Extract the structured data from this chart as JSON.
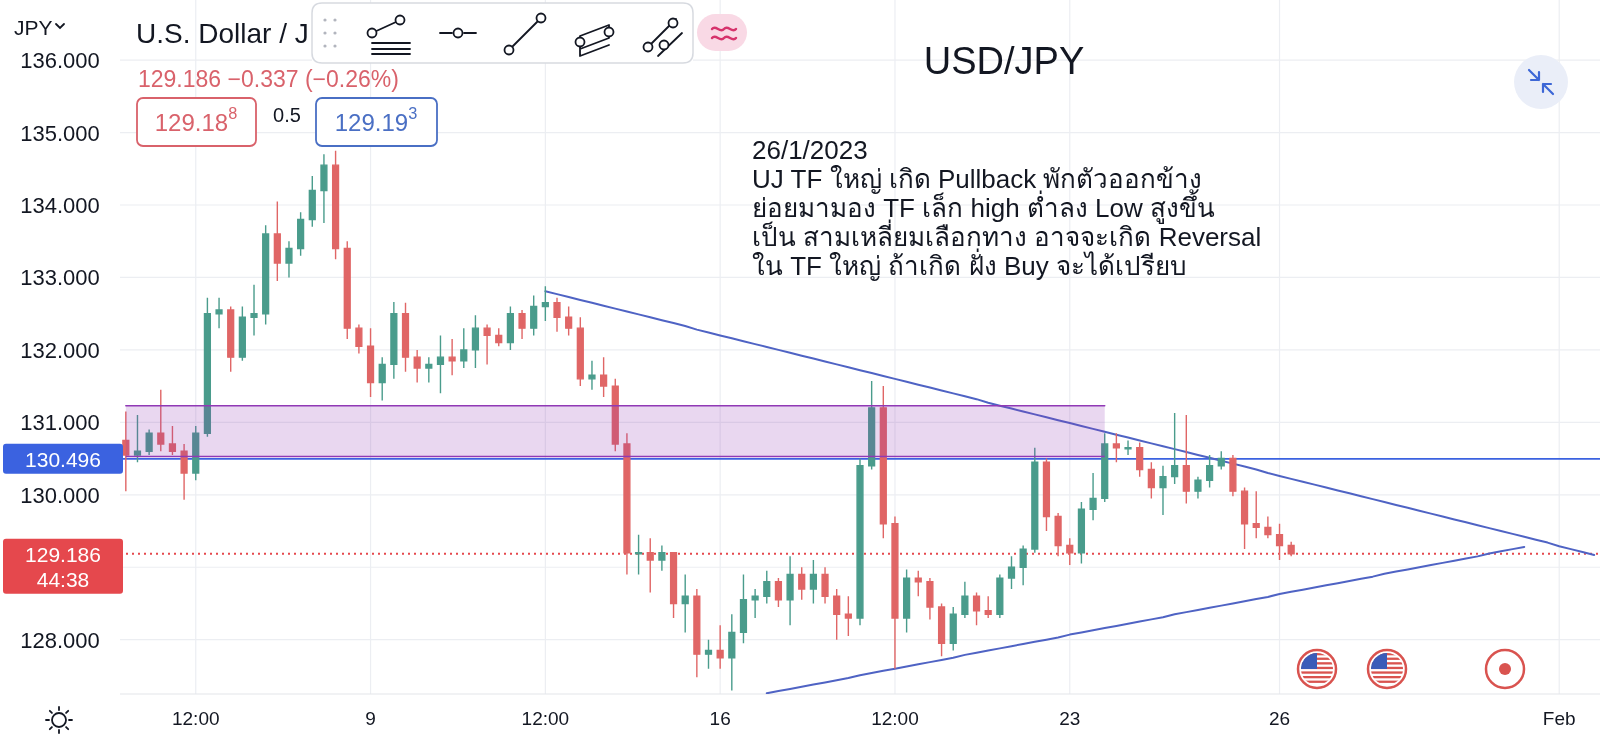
{
  "chart_data": {
    "type": "candlestick",
    "title": "USD/JPY",
    "subtitle": "U.S. Dollar / J",
    "categories": [
      null,
      null,
      null,
      null,
      null,
      null,
      "12:00",
      null,
      null,
      null,
      null,
      null,
      null,
      null,
      null,
      null,
      null,
      null,
      null,
      null,
      null,
      "9",
      null,
      null,
      null,
      null,
      null,
      null,
      null,
      null,
      null,
      null,
      null,
      null,
      null,
      null,
      "12:00",
      null,
      null,
      null,
      null,
      null,
      null,
      null,
      null,
      null,
      null,
      null,
      null,
      null,
      null,
      "16",
      null,
      null,
      null,
      null,
      null,
      null,
      null,
      null,
      null,
      null,
      null,
      null,
      null,
      null,
      "12:00",
      null,
      null,
      null,
      null,
      null,
      null,
      null,
      null,
      null,
      null,
      null,
      null,
      null,
      null,
      "23",
      null,
      null,
      null,
      null,
      null,
      null,
      null,
      null,
      null,
      null,
      null,
      null,
      null,
      null,
      null,
      null,
      null,
      "26",
      null,
      null,
      null,
      null,
      null,
      null,
      null,
      null,
      null,
      null,
      null,
      null,
      null,
      null,
      null,
      null,
      null,
      null,
      null,
      null,
      null,
      null,
      null,
      "Feb",
      null,
      null,
      null
    ],
    "ohlc": [
      [
        130.75,
        131.15,
        130.05,
        130.55
      ],
      [
        130.55,
        131.1,
        130.45,
        130.6
      ],
      [
        130.6,
        130.9,
        130.55,
        130.85
      ],
      [
        130.85,
        131.45,
        130.6,
        130.7
      ],
      [
        130.7,
        130.95,
        130.55,
        130.6
      ],
      [
        130.6,
        130.7,
        129.93,
        130.3
      ],
      [
        130.3,
        130.95,
        130.2,
        130.85
      ],
      [
        130.85,
        132.72,
        130.8,
        132.5
      ],
      [
        132.5,
        132.72,
        132.3,
        132.55
      ],
      [
        132.55,
        132.6,
        131.7,
        131.9
      ],
      [
        131.9,
        132.6,
        131.85,
        132.45
      ],
      [
        132.45,
        132.9,
        132.2,
        132.5
      ],
      [
        132.5,
        133.72,
        132.35,
        133.6
      ],
      [
        133.6,
        134.05,
        132.95,
        133.2
      ],
      [
        133.2,
        133.5,
        133.0,
        133.4
      ],
      [
        133.4,
        133.9,
        133.3,
        133.8
      ],
      [
        133.8,
        134.4,
        133.7,
        134.2
      ],
      [
        134.2,
        134.7,
        133.75,
        134.55
      ],
      [
        134.55,
        134.75,
        133.25,
        133.4
      ],
      [
        133.4,
        133.5,
        132.15,
        132.3
      ],
      [
        132.3,
        132.35,
        131.95,
        132.05
      ],
      [
        132.05,
        132.3,
        131.35,
        131.55
      ],
      [
        131.55,
        131.9,
        131.3,
        131.8
      ],
      [
        131.8,
        132.66,
        131.6,
        132.5
      ],
      [
        132.5,
        132.65,
        131.7,
        131.9
      ],
      [
        131.9,
        132.0,
        131.55,
        131.75
      ],
      [
        131.75,
        131.9,
        131.55,
        131.8
      ],
      [
        131.8,
        132.2,
        131.4,
        131.9
      ],
      [
        131.9,
        132.15,
        131.65,
        131.85
      ],
      [
        131.85,
        132.3,
        131.75,
        132.0
      ],
      [
        132.0,
        132.48,
        131.75,
        132.3
      ],
      [
        132.3,
        132.35,
        131.8,
        132.2
      ],
      [
        132.2,
        132.3,
        132.05,
        132.1
      ],
      [
        132.1,
        132.6,
        132.0,
        132.5
      ],
      [
        132.5,
        132.55,
        132.15,
        132.3
      ],
      [
        132.3,
        132.75,
        132.2,
        132.6
      ],
      [
        132.6,
        132.88,
        132.4,
        132.65
      ],
      [
        132.65,
        132.72,
        132.25,
        132.45
      ],
      [
        132.45,
        132.6,
        132.2,
        132.3
      ],
      [
        132.3,
        132.45,
        131.5,
        131.6
      ],
      [
        131.6,
        131.85,
        131.45,
        131.65
      ],
      [
        131.65,
        131.9,
        131.35,
        131.5
      ],
      [
        131.5,
        131.6,
        130.6,
        130.7
      ],
      [
        130.7,
        130.85,
        128.9,
        129.2
      ],
      [
        129.2,
        129.45,
        128.9,
        129.2
      ],
      [
        129.2,
        129.4,
        128.65,
        129.1
      ],
      [
        129.1,
        129.3,
        128.95,
        129.2
      ],
      [
        129.2,
        129.2,
        128.3,
        128.5
      ],
      [
        128.5,
        128.9,
        128.1,
        128.6
      ],
      [
        128.6,
        128.7,
        127.48,
        127.8
      ],
      [
        127.8,
        128.0,
        127.6,
        127.85
      ],
      [
        127.85,
        128.2,
        127.6,
        127.75
      ],
      [
        127.75,
        128.35,
        127.3,
        128.1
      ],
      [
        128.1,
        128.9,
        127.95,
        128.55
      ],
      [
        128.55,
        128.7,
        128.3,
        128.6
      ],
      [
        128.6,
        128.95,
        128.5,
        128.8
      ],
      [
        128.8,
        128.85,
        128.45,
        128.55
      ],
      [
        128.55,
        129.15,
        128.2,
        128.9
      ],
      [
        128.9,
        129.0,
        128.55,
        128.7
      ],
      [
        128.7,
        129.1,
        128.5,
        128.9
      ],
      [
        128.9,
        129.0,
        128.5,
        128.6
      ],
      [
        128.6,
        128.7,
        128.0,
        128.35
      ],
      [
        128.35,
        128.6,
        128.05,
        128.3
      ],
      [
        128.3,
        130.5,
        128.2,
        130.4
      ],
      [
        130.4,
        131.57,
        130.35,
        131.2
      ],
      [
        131.2,
        131.5,
        129.4,
        129.6
      ],
      [
        129.6,
        129.7,
        127.6,
        128.3
      ],
      [
        128.3,
        128.97,
        128.1,
        128.85
      ],
      [
        128.85,
        128.95,
        128.6,
        128.8
      ],
      [
        128.8,
        128.85,
        128.28,
        128.45
      ],
      [
        128.45,
        128.5,
        127.77,
        127.95
      ],
      [
        127.95,
        128.45,
        127.85,
        128.35
      ],
      [
        128.35,
        128.8,
        128.3,
        128.6
      ],
      [
        128.6,
        128.65,
        128.2,
        128.4
      ],
      [
        128.4,
        128.6,
        128.3,
        128.35
      ],
      [
        128.35,
        128.9,
        128.3,
        128.85
      ],
      [
        128.85,
        129.15,
        128.7,
        129.0
      ],
      [
        129.0,
        129.3,
        128.75,
        129.25
      ],
      [
        129.25,
        130.65,
        129.2,
        130.45
      ],
      [
        130.45,
        130.5,
        129.5,
        129.7
      ],
      [
        129.7,
        129.75,
        129.15,
        129.3
      ],
      [
        129.3,
        129.4,
        129.03,
        129.2
      ],
      [
        129.2,
        129.9,
        129.05,
        129.8
      ],
      [
        129.8,
        130.3,
        129.65,
        129.95
      ],
      [
        129.95,
        130.85,
        129.9,
        130.7
      ],
      [
        130.7,
        130.85,
        130.45,
        130.65
      ],
      [
        130.65,
        130.75,
        130.55,
        130.65
      ],
      [
        130.65,
        130.72,
        130.25,
        130.35
      ],
      [
        130.35,
        130.45,
        129.95,
        130.1
      ],
      [
        130.1,
        130.4,
        129.72,
        130.25
      ],
      [
        130.25,
        131.13,
        130.15,
        130.4
      ],
      [
        130.4,
        131.1,
        129.88,
        130.05
      ],
      [
        130.05,
        130.25,
        129.95,
        130.2
      ],
      [
        130.2,
        130.55,
        130.1,
        130.4
      ],
      [
        130.4,
        130.6,
        130.35,
        130.5
      ],
      [
        130.5,
        130.55,
        129.98,
        130.05
      ],
      [
        130.05,
        130.1,
        129.25,
        129.6
      ],
      [
        129.6,
        130.05,
        129.4,
        129.55
      ],
      [
        129.55,
        129.7,
        129.4,
        129.45
      ],
      [
        129.45,
        129.6,
        129.1,
        129.3
      ],
      [
        129.3,
        129.35,
        129.15,
        129.186
      ],
      null,
      null,
      null,
      null,
      null,
      null,
      null,
      null,
      null,
      null,
      null,
      null,
      null,
      null,
      null,
      null,
      null,
      null,
      null,
      null,
      null,
      null,
      null,
      null,
      null,
      null
    ],
    "colors": [
      "#e06666",
      "#4a9c8c",
      "#4a9c8c",
      "#e06666",
      "#e06666",
      "#e06666",
      "#4a9c8c",
      "#4a9c8c",
      "#4a9c8c",
      "#e06666",
      "#4a9c8c",
      "#4a9c8c",
      "#4a9c8c",
      "#e06666",
      "#4a9c8c",
      "#4a9c8c",
      "#4a9c8c",
      "#4a9c8c",
      "#e06666",
      "#e06666",
      "#e06666",
      "#e06666",
      "#4a9c8c",
      "#4a9c8c",
      "#e06666",
      "#e06666",
      "#4a9c8c",
      "#4a9c8c",
      "#e06666",
      "#4a9c8c",
      "#4a9c8c",
      "#e06666",
      "#e06666",
      "#4a9c8c",
      "#e06666",
      "#4a9c8c",
      "#4a9c8c",
      "#e06666",
      "#e06666",
      "#e06666",
      "#4a9c8c",
      "#e06666",
      "#e06666",
      "#e06666",
      "#4a9c8c",
      "#e06666",
      "#4a9c8c",
      "#e06666",
      "#4a9c8c",
      "#e06666",
      "#4a9c8c",
      "#e06666",
      "#4a9c8c",
      "#4a9c8c",
      "#4a9c8c",
      "#4a9c8c",
      "#e06666",
      "#4a9c8c",
      "#e06666",
      "#4a9c8c",
      "#e06666",
      "#e06666",
      "#e06666",
      "#4a9c8c",
      "#4a9c8c",
      "#e06666",
      "#e06666",
      "#4a9c8c",
      "#e06666",
      "#e06666",
      "#e06666",
      "#4a9c8c",
      "#4a9c8c",
      "#e06666",
      "#e06666",
      "#4a9c8c",
      "#4a9c8c",
      "#4a9c8c",
      "#4a9c8c",
      "#e06666",
      "#e06666",
      "#e06666",
      "#4a9c8c",
      "#4a9c8c",
      "#4a9c8c",
      "#e06666",
      "#4a9c8c",
      "#e06666",
      "#e06666",
      "#4a9c8c",
      "#4a9c8c",
      "#e06666",
      "#4a9c8c",
      "#4a9c8c",
      "#4a9c8c",
      "#e06666",
      "#e06666",
      "#e06666",
      "#e06666",
      "#e06666",
      "#e06666",
      null,
      null,
      null,
      null,
      null,
      null,
      null,
      null,
      null,
      null,
      null,
      null,
      null,
      null,
      null,
      null,
      null,
      null,
      null,
      null,
      null,
      null,
      null,
      null,
      null,
      null
    ],
    "ylim": [
      127.25,
      136.83
    ],
    "yticks": [
      {
        "value": 128,
        "label": "128.000"
      },
      {
        "value": 129,
        "label": null
      },
      {
        "value": 130,
        "label": "130.000"
      },
      {
        "value": 131,
        "label": "131.000"
      },
      {
        "value": 132,
        "label": "132.000"
      },
      {
        "value": 133,
        "label": "133.000"
      },
      {
        "value": 134,
        "label": "134.000"
      },
      {
        "value": 135,
        "label": "135.000"
      },
      {
        "value": 136,
        "label": "136.000"
      }
    ],
    "grid": true,
    "series": [
      {
        "type": "line",
        "color": "#9039b5",
        "values": [
          131.23,
          131.23,
          131.23,
          131.23,
          131.23,
          131.23,
          131.23,
          131.23,
          131.23,
          131.23,
          131.23,
          131.23,
          131.23,
          131.23,
          131.23,
          131.23,
          131.23,
          131.23,
          131.23,
          131.23,
          131.23,
          131.23,
          131.23,
          131.23,
          131.23,
          131.23,
          131.23,
          131.23,
          131.23,
          131.23,
          131.23,
          131.23,
          131.23,
          131.23,
          131.23,
          131.23,
          131.23,
          131.23,
          131.23,
          131.23,
          131.23,
          131.23,
          131.23,
          131.23,
          131.23,
          131.23,
          131.23,
          131.23,
          131.23,
          131.23,
          131.23,
          131.23,
          131.23,
          131.23,
          131.23,
          131.23,
          131.23,
          131.23,
          131.23,
          131.23,
          131.23,
          131.23,
          131.23,
          131.23,
          131.23,
          131.23,
          131.23,
          131.23,
          131.23,
          131.23,
          131.23,
          131.23,
          131.23,
          131.23,
          131.23,
          131.23,
          131.23,
          131.23,
          131.23,
          131.23,
          131.23,
          131.23,
          131.23,
          131.23,
          131.23,
          null,
          null,
          null,
          null,
          null,
          null,
          null,
          null,
          null,
          null,
          null,
          null,
          null,
          null,
          null,
          null,
          null,
          null,
          null,
          null,
          null,
          null,
          null,
          null,
          null,
          null,
          null,
          null,
          null,
          null,
          null,
          null,
          null,
          null,
          null,
          null,
          null,
          null,
          null,
          null,
          null,
          null
        ],
        "upper": [
          131.23,
          131.23,
          131.23,
          131.23,
          131.23,
          131.23,
          131.23,
          131.23,
          131.23,
          131.23,
          131.23,
          131.23,
          131.23,
          131.23,
          131.23,
          131.23,
          131.23,
          131.23,
          131.23,
          131.23,
          131.23,
          131.23,
          131.23,
          131.23,
          131.23,
          131.23,
          131.23,
          131.23,
          131.23,
          131.23,
          131.23,
          131.23,
          131.23,
          131.23,
          131.23,
          131.23,
          131.23,
          131.23,
          131.23,
          131.23,
          131.23,
          131.23,
          131.23,
          131.23,
          131.23,
          131.23,
          131.23,
          131.23,
          131.23,
          131.23,
          131.23,
          131.23,
          131.23,
          131.23,
          131.23,
          131.23,
          131.23,
          131.23,
          131.23,
          131.23,
          131.23,
          131.23,
          131.23,
          131.23,
          131.23,
          131.23,
          131.23,
          131.23,
          131.23,
          131.23,
          131.23,
          131.23,
          131.23,
          131.23,
          131.23,
          131.23,
          131.23,
          131.23,
          131.23,
          131.23,
          131.23,
          131.23,
          131.23,
          131.23,
          131.23,
          null,
          null,
          null,
          null,
          null,
          null,
          null,
          null,
          null,
          null,
          null,
          null,
          null,
          null,
          null,
          null,
          null,
          null,
          null,
          null,
          null,
          null,
          null,
          null,
          null,
          null,
          null,
          null,
          null,
          null,
          null,
          null,
          null,
          null,
          null,
          null,
          null,
          null,
          null,
          null,
          null,
          null
        ],
        "lower": [
          130.53,
          130.53,
          130.53,
          130.53,
          130.53,
          130.53,
          130.53,
          130.53,
          130.53,
          130.53,
          130.53,
          130.53,
          130.53,
          130.53,
          130.53,
          130.53,
          130.53,
          130.53,
          130.53,
          130.53,
          130.53,
          130.53,
          130.53,
          130.53,
          130.53,
          130.53,
          130.53,
          130.53,
          130.53,
          130.53,
          130.53,
          130.53,
          130.53,
          130.53,
          130.53,
          130.53,
          130.53,
          130.53,
          130.53,
          130.53,
          130.53,
          130.53,
          130.53,
          130.53,
          130.53,
          130.53,
          130.53,
          130.53,
          130.53,
          130.53,
          130.53,
          130.53,
          130.53,
          130.53,
          130.53,
          130.53,
          130.53,
          130.53,
          130.53,
          130.53,
          130.53,
          130.53,
          130.53,
          130.53,
          130.53,
          130.53,
          130.53,
          130.53,
          130.53,
          130.53,
          130.53,
          130.53,
          130.53,
          130.53,
          130.53,
          130.53,
          130.53,
          130.53,
          130.53,
          130.53,
          130.53,
          130.53,
          130.53,
          130.53,
          130.53,
          null,
          null,
          null,
          null,
          null,
          null,
          null,
          null,
          null,
          null,
          null,
          null,
          null,
          null,
          null,
          null,
          null,
          null,
          null,
          null,
          null,
          null,
          null,
          null,
          null,
          null,
          null,
          null,
          null,
          null,
          null,
          null,
          null,
          null,
          null,
          null,
          null,
          null,
          null,
          null,
          null,
          null
        ]
      },
      {
        "type": "line",
        "color": "#4f63c4",
        "values": [
          null,
          null,
          null,
          null,
          null,
          null,
          null,
          null,
          null,
          null,
          null,
          null,
          null,
          null,
          null,
          null,
          null,
          null,
          null,
          null,
          null,
          null,
          null,
          null,
          null,
          null,
          null,
          null,
          null,
          null,
          null,
          null,
          null,
          null,
          null,
          null,
          132.81,
          132.77,
          132.73,
          132.69,
          132.65,
          132.61,
          132.57,
          132.53,
          132.49,
          132.45,
          132.41,
          132.37,
          132.33,
          132.28,
          132.24,
          132.2,
          132.16,
          132.12,
          132.08,
          132.04,
          132.0,
          131.96,
          131.92,
          131.88,
          131.84,
          131.8,
          131.76,
          131.72,
          131.68,
          131.64,
          131.6,
          131.56,
          131.52,
          131.48,
          131.44,
          131.4,
          131.36,
          131.32,
          131.27,
          131.23,
          131.19,
          131.15,
          131.11,
          131.07,
          131.03,
          130.99,
          130.95,
          130.91,
          130.87,
          130.83,
          130.79,
          130.75,
          130.71,
          130.67,
          130.63,
          130.59,
          130.55,
          130.51,
          130.47,
          130.43,
          130.39,
          130.35,
          130.3,
          130.26,
          130.22,
          130.18,
          130.14,
          130.1,
          130.06,
          130.02,
          129.98,
          129.94,
          129.9,
          129.86,
          129.82,
          129.78,
          129.74,
          129.7,
          129.66,
          129.62,
          129.58,
          129.54,
          129.5,
          129.46,
          129.42,
          129.38,
          129.34,
          129.29,
          129.25,
          129.21,
          129.17
        ]
      },
      {
        "type": "line",
        "color": "#4f63c4",
        "values": [
          null,
          null,
          null,
          null,
          null,
          null,
          null,
          null,
          null,
          null,
          null,
          null,
          null,
          null,
          null,
          null,
          null,
          null,
          null,
          null,
          null,
          null,
          null,
          null,
          null,
          null,
          null,
          null,
          null,
          null,
          null,
          null,
          null,
          null,
          null,
          null,
          null,
          null,
          null,
          null,
          null,
          null,
          null,
          null,
          null,
          null,
          null,
          null,
          null,
          null,
          null,
          null,
          null,
          null,
          null,
          127.26,
          127.29,
          127.32,
          127.35,
          127.38,
          127.41,
          127.44,
          127.47,
          127.51,
          127.54,
          127.57,
          127.6,
          127.63,
          127.66,
          127.69,
          127.72,
          127.75,
          127.79,
          127.82,
          127.85,
          127.88,
          127.91,
          127.94,
          127.97,
          128.0,
          128.03,
          128.07,
          128.1,
          128.13,
          128.16,
          128.19,
          128.22,
          128.25,
          128.28,
          128.31,
          128.35,
          128.38,
          128.41,
          128.44,
          128.47,
          128.5,
          128.53,
          128.56,
          128.59,
          128.63,
          128.66,
          128.69,
          128.72,
          128.75,
          128.78,
          128.81,
          128.84,
          128.87,
          128.91,
          128.94,
          128.97,
          129.0,
          129.03,
          129.06,
          129.09,
          129.12,
          129.15,
          129.19,
          129.22,
          129.25,
          129.28,
          null,
          null,
          null,
          null,
          null,
          null
        ]
      }
    ],
    "ref_lines": [
      {
        "axis": "y",
        "value": 130.496,
        "label": "130.496",
        "color": "#3b62e0",
        "line_style": "solid"
      },
      {
        "axis": "y",
        "value": 129.186,
        "label": "129.186\n44:38",
        "color": "#e5484d",
        "line_style": "dotted"
      }
    ],
    "annotations": [
      "JPY",
      "129.186 −0.337 (−0.26%)",
      "129.18$^{8}$",
      "0.5",
      "129.19$^{3}$",
      "26/1/2023\nUJ TF ใหญ่ เกิด Pullback พักตัวออกข้าง\nย่อยมามอง TF เล็ก high ต่ำลง Low สูงขึ้น\nเป็น สามเหลี่ยมเลือกทาง อาจจะเกิด Reversal\nใน TF ใหญ่ ถ้าเกิด ฝั่ง Buy จะได้เปรียบ"
    ]
  }
}
